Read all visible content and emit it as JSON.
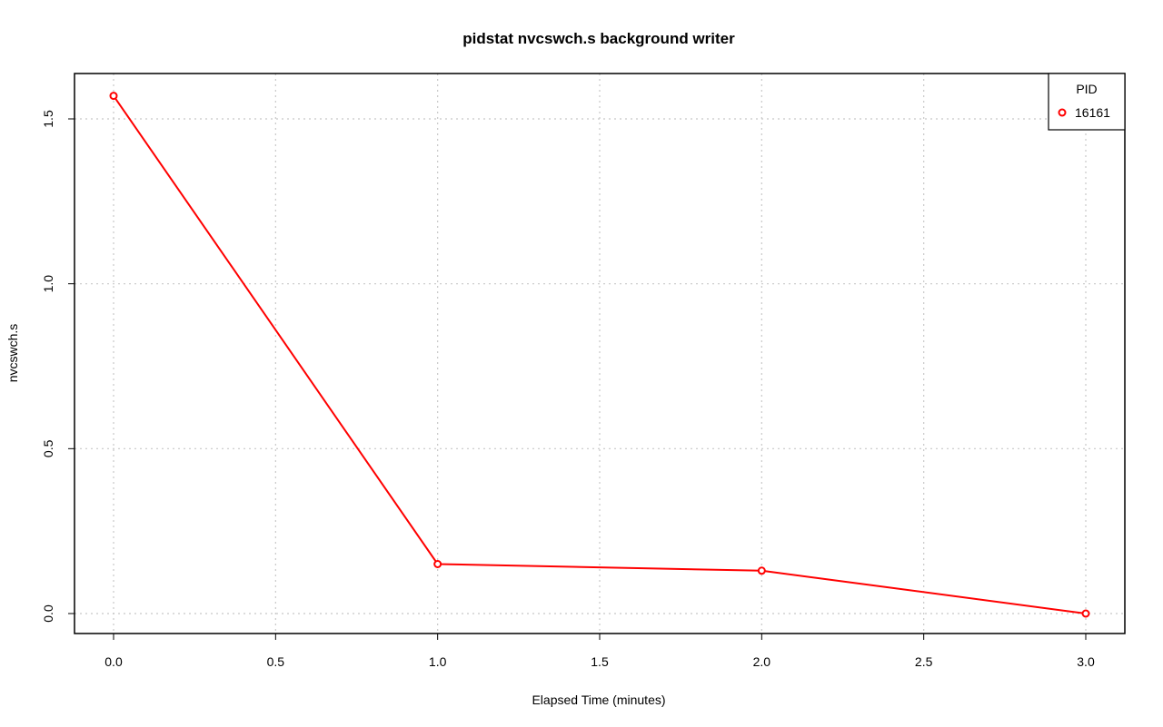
{
  "chart_data": {
    "type": "line",
    "title": "pidstat nvcswch.s background writer",
    "xlabel": "Elapsed Time (minutes)",
    "ylabel": "nvcswch.s",
    "xlim": [
      -0.1,
      3.12
    ],
    "ylim": [
      -0.06,
      1.63
    ],
    "x_ticks": [
      0.0,
      0.5,
      1.0,
      1.5,
      2.0,
      2.5,
      3.0
    ],
    "x_tick_labels": [
      "0.0",
      "0.5",
      "1.0",
      "1.5",
      "2.0",
      "2.5",
      "3.0"
    ],
    "y_ticks": [
      0.0,
      0.5,
      1.0,
      1.5
    ],
    "y_tick_labels": [
      "0.0",
      "0.5",
      "1.0",
      "1.5"
    ],
    "grid": true,
    "legend": {
      "title": "PID",
      "placement": "top-right"
    },
    "series": [
      {
        "name": "16161",
        "color": "#ff0000",
        "x": [
          0.0,
          1.0,
          2.0,
          3.0
        ],
        "y": [
          1.57,
          0.15,
          0.13,
          0.0
        ]
      }
    ]
  }
}
